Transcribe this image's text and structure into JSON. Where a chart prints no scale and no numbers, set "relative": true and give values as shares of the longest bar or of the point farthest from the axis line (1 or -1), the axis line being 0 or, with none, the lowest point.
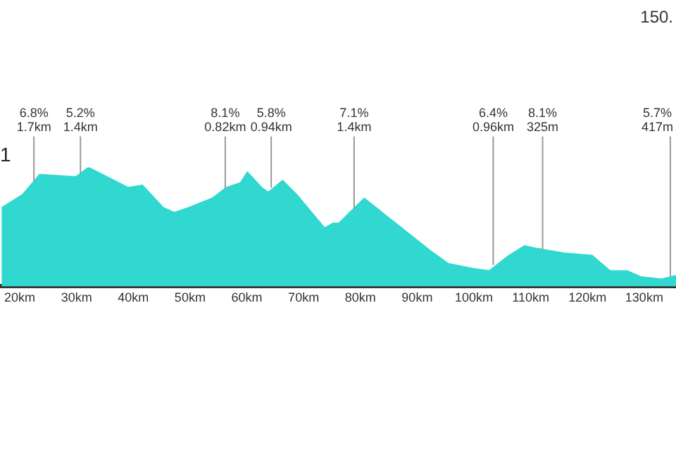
{
  "chart_data": {
    "type": "area",
    "title": "1",
    "relative": true,
    "legend": false,
    "grid": false,
    "x": [
      16.8,
      20.5,
      23.0,
      23.5,
      29.9,
      32.1,
      35.4,
      39.1,
      41.6,
      45.3,
      47.2,
      49.7,
      53.9,
      56.4,
      58.9,
      60.1,
      62.6,
      63.8,
      66.3,
      68.8,
      73.7,
      75.2,
      76.2,
      80.7,
      84.9,
      87.3,
      92.3,
      95.5,
      99.7,
      102.7,
      105.9,
      108.9,
      110.9,
      115.8,
      120.8,
      124.0,
      127.0,
      129.4,
      133.1,
      135.6
    ],
    "series": [
      {
        "color": "#30d8d0",
        "values": [
          0.66,
          0.77,
          0.91,
          0.94,
          0.92,
          1,
          0.92,
          0.83,
          0.85,
          0.66,
          0.62,
          0.66,
          0.74,
          0.83,
          0.87,
          0.96,
          0.83,
          0.79,
          0.89,
          0.77,
          0.49,
          0.53,
          0.53,
          0.74,
          0.58,
          0.49,
          0.3,
          0.19,
          0.15,
          0.13,
          0.25,
          0.34,
          0.32,
          0.28,
          0.26,
          0.13,
          0.13,
          0.08,
          0.06,
          0.09
        ]
      }
    ],
    "xlim": [
      16.8,
      135.6
    ],
    "xticks": [
      {
        "value": 20,
        "label": "20km"
      },
      {
        "value": 30,
        "label": "30km"
      },
      {
        "value": 40,
        "label": "40km"
      },
      {
        "value": 50,
        "label": "50km"
      },
      {
        "value": 60,
        "label": "60km"
      },
      {
        "value": 70,
        "label": "70km"
      },
      {
        "value": 80,
        "label": "80km"
      },
      {
        "value": 90,
        "label": "90km"
      },
      {
        "value": 100,
        "label": "100km"
      },
      {
        "value": 110,
        "label": "110km"
      },
      {
        "value": 120,
        "label": "120km"
      },
      {
        "value": 130,
        "label": "130km"
      }
    ],
    "annotations": [
      {
        "text": "6.8%\n1.7km",
        "x": 22.5,
        "y": 0.88
      },
      {
        "text": "5.2%\n1.4km",
        "x": 30.7,
        "y": 0.95
      },
      {
        "text": "8.1%\n0.82km",
        "x": 56.2,
        "y": 0.82
      },
      {
        "text": "5.8%\n0.94km",
        "x": 64.3,
        "y": 0.83
      },
      {
        "text": "7.1%\n1.4km",
        "x": 78.9,
        "y": 0.65
      },
      {
        "text": "6.4%\n0.96km",
        "x": 103.4,
        "y": 0.18
      },
      {
        "text": "8.1%\n325m",
        "x": 112.1,
        "y": 0.31
      },
      {
        "text": "5.7%\n417m",
        "x": 134.6,
        "y": 0.08
      },
      "150."
    ]
  }
}
